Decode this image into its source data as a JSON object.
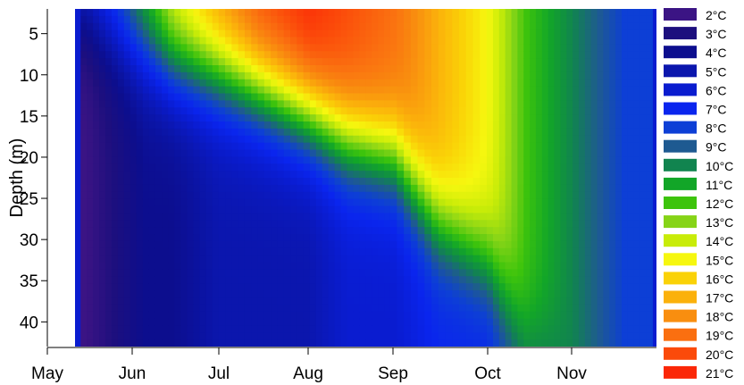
{
  "chart_data": {
    "type": "heatmap",
    "title": "",
    "xlabel": "",
    "ylabel": "Depth (m)",
    "x_ticks": [
      "May",
      "Jun",
      "Jul",
      "Aug",
      "Sep",
      "Oct",
      "Nov"
    ],
    "y_ticks": [
      5,
      10,
      15,
      20,
      25,
      30,
      35,
      40
    ],
    "ylim": [
      2,
      43
    ],
    "y_inverted": true,
    "legend_position": "right",
    "colorscale": [
      {
        "label": "2°C",
        "value": 2,
        "color": "#3b1484"
      },
      {
        "label": "3°C",
        "value": 3,
        "color": "#1d0f7e"
      },
      {
        "label": "4°C",
        "value": 4,
        "color": "#0c0e8e"
      },
      {
        "label": "5°C",
        "value": 5,
        "color": "#0b16ad"
      },
      {
        "label": "6°C",
        "value": 6,
        "color": "#0a1ccf"
      },
      {
        "label": "7°C",
        "value": 7,
        "color": "#0a25ee"
      },
      {
        "label": "8°C",
        "value": 8,
        "color": "#0d3fd6"
      },
      {
        "label": "9°C",
        "value": 9,
        "color": "#1e5a91"
      },
      {
        "label": "10°C",
        "value": 10,
        "color": "#11844f"
      },
      {
        "label": "11°C",
        "value": 11,
        "color": "#12a628"
      },
      {
        "label": "12°C",
        "value": 12,
        "color": "#3dc40c"
      },
      {
        "label": "13°C",
        "value": 13,
        "color": "#86d417"
      },
      {
        "label": "14°C",
        "value": 14,
        "color": "#c8ec08"
      },
      {
        "label": "15°C",
        "value": 15,
        "color": "#f6f70f"
      },
      {
        "label": "16°C",
        "value": 16,
        "color": "#fad207"
      },
      {
        "label": "17°C",
        "value": 17,
        "color": "#fbb10b"
      },
      {
        "label": "18°C",
        "value": 18,
        "color": "#f98e0f"
      },
      {
        "label": "19°C",
        "value": 19,
        "color": "#fa6f10"
      },
      {
        "label": "20°C",
        "value": 20,
        "color": "#fb4a0a"
      },
      {
        "label": "21°C",
        "value": 21,
        "color": "#fb2707"
      }
    ],
    "profile_columns": [
      {
        "date": "May 15",
        "thermocline_depth": 3,
        "surface_temp": 7,
        "deep_temp": 2
      },
      {
        "date": "May 25",
        "thermocline_depth": 5,
        "surface_temp": 9,
        "deep_temp": 3
      },
      {
        "date": "Jun 5",
        "thermocline_depth": 7,
        "surface_temp": 12,
        "deep_temp": 4
      },
      {
        "date": "Jun 15",
        "thermocline_depth": 9,
        "surface_temp": 15,
        "deep_temp": 4
      },
      {
        "date": "Jul 1",
        "thermocline_depth": 10,
        "surface_temp": 18,
        "deep_temp": 5
      },
      {
        "date": "Jul 15",
        "thermocline_depth": 12,
        "surface_temp": 20,
        "deep_temp": 5
      },
      {
        "date": "Aug 1",
        "thermocline_depth": 15,
        "surface_temp": 21,
        "deep_temp": 5
      },
      {
        "date": "Aug 15",
        "thermocline_depth": 18,
        "surface_temp": 20,
        "deep_temp": 6
      },
      {
        "date": "Sep 1",
        "thermocline_depth": 20,
        "surface_temp": 19,
        "deep_temp": 6
      },
      {
        "date": "Sep 15",
        "thermocline_depth": 28,
        "surface_temp": 17,
        "deep_temp": 7
      },
      {
        "date": "Oct 1",
        "thermocline_depth": 33,
        "surface_temp": 15,
        "deep_temp": 7
      },
      {
        "date": "Oct 15",
        "thermocline_depth": 42,
        "surface_temp": 12,
        "deep_temp": 9
      },
      {
        "date": "Nov 1",
        "thermocline_depth": 43,
        "surface_temp": 10,
        "deep_temp": 10
      },
      {
        "date": "Nov 20",
        "thermocline_depth": 43,
        "surface_temp": 8,
        "deep_temp": 8
      }
    ]
  }
}
